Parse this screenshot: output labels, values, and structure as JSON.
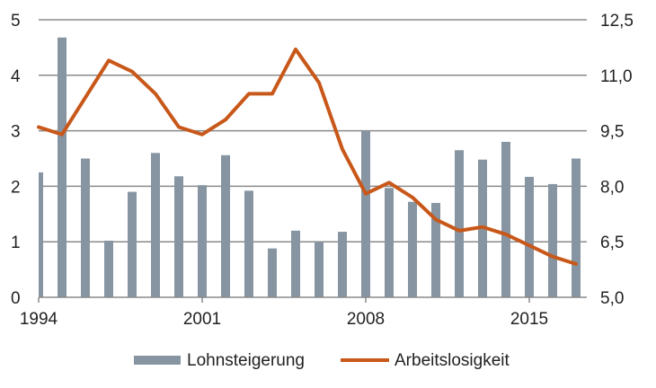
{
  "chart_data": {
    "type": "bar+line",
    "x": [
      1994,
      1995,
      1996,
      1997,
      1998,
      1999,
      2000,
      2001,
      2002,
      2003,
      2004,
      2005,
      2006,
      2007,
      2008,
      2009,
      2010,
      2011,
      2012,
      2013,
      2014,
      2015,
      2016,
      2017
    ],
    "x_tick_labels": [
      "1994",
      "2001",
      "2008",
      "2015"
    ],
    "x_ticks": [
      1994,
      2001,
      2008,
      2015
    ],
    "series": [
      {
        "name": "Lohnsteigerung",
        "type": "bar",
        "axis": "left",
        "color": "#8795a2",
        "values": [
          2.25,
          4.68,
          2.5,
          1.02,
          1.9,
          2.6,
          2.18,
          2.02,
          2.56,
          1.92,
          0.88,
          1.2,
          1.0,
          1.18,
          3.0,
          1.97,
          1.72,
          1.7,
          2.65,
          2.48,
          2.8,
          2.17,
          2.04,
          2.5
        ]
      },
      {
        "name": "Arbeitslosigkeit",
        "type": "line",
        "axis": "right",
        "color": "#c8581a",
        "values": [
          9.6,
          9.4,
          10.4,
          11.4,
          11.1,
          10.5,
          9.6,
          9.4,
          9.8,
          10.5,
          10.5,
          11.7,
          10.8,
          9.0,
          7.8,
          8.1,
          7.7,
          7.1,
          6.8,
          6.9,
          6.7,
          6.4,
          6.1,
          5.9
        ]
      }
    ],
    "left_axis": {
      "ylim": [
        0,
        5
      ],
      "ticks": [
        0,
        1,
        2,
        3,
        4,
        5
      ],
      "tick_labels": [
        "0",
        "1",
        "2",
        "3",
        "4",
        "5"
      ]
    },
    "right_axis": {
      "ylim": [
        5,
        12.5
      ],
      "ticks": [
        5,
        6.5,
        8,
        9.5,
        11,
        12.5
      ],
      "tick_labels": [
        "5,0",
        "6,5",
        "8,0",
        "9,5",
        "11,0",
        "12,5"
      ]
    },
    "grid": true,
    "legend_position": "bottom",
    "title": "",
    "xlabel": "",
    "ylabel": ""
  }
}
